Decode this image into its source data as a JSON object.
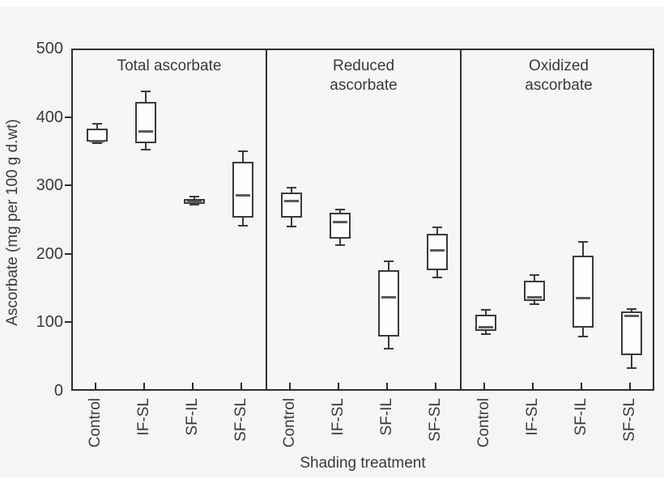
{
  "figure": {
    "background_color": "#f5f5f3",
    "frame_color": "#2e2e2e",
    "text_color": "#3a3a3a"
  },
  "chart_data": {
    "type": "boxplot",
    "xlabel": "Shading treatment",
    "ylabel": "Ascorbate (mg per 100 g d.wt)",
    "ylim": [
      0,
      500
    ],
    "yticks": [
      0,
      100,
      200,
      300,
      400,
      500
    ],
    "grid": false,
    "categories": [
      "Control",
      "IF-SL",
      "SF-IL",
      "SF-SL"
    ],
    "panels": [
      {
        "title": "Total ascorbate",
        "title_lines": [
          "Total ascorbate"
        ],
        "boxes": [
          {
            "category": "Control",
            "whisker_low": 364,
            "q1": 366,
            "median": 368,
            "q3": 385,
            "whisker_high": 392
          },
          {
            "category": "IF-SL",
            "whisker_low": 355,
            "q1": 364,
            "median": 382,
            "q3": 424,
            "whisker_high": 440
          },
          {
            "category": "SF-IL",
            "whisker_low": 274,
            "q1": 276,
            "median": 279,
            "q3": 283,
            "whisker_high": 286
          },
          {
            "category": "SF-SL",
            "whisker_low": 243,
            "q1": 255,
            "median": 288,
            "q3": 337,
            "whisker_high": 352
          }
        ]
      },
      {
        "title": "Reduced ascorbate",
        "title_lines": [
          "Reduced",
          "ascorbate"
        ],
        "boxes": [
          {
            "category": "Control",
            "whisker_low": 242,
            "q1": 255,
            "median": 280,
            "q3": 292,
            "whisker_high": 299
          },
          {
            "category": "IF-SL",
            "whisker_low": 215,
            "q1": 225,
            "median": 249,
            "q3": 262,
            "whisker_high": 267
          },
          {
            "category": "SF-IL",
            "whisker_low": 64,
            "q1": 82,
            "median": 139,
            "q3": 179,
            "whisker_high": 191
          },
          {
            "category": "SF-SL",
            "whisker_low": 168,
            "q1": 178,
            "median": 208,
            "q3": 232,
            "whisker_high": 241
          }
        ]
      },
      {
        "title": "Oxidized ascorbate",
        "title_lines": [
          "Oxidized",
          "ascorbate"
        ],
        "boxes": [
          {
            "category": "Control",
            "whisker_low": 85,
            "q1": 90,
            "median": 96,
            "q3": 113,
            "whisker_high": 120
          },
          {
            "category": "IF-SL",
            "whisker_low": 129,
            "q1": 133,
            "median": 139,
            "q3": 163,
            "whisker_high": 171
          },
          {
            "category": "SF-IL",
            "whisker_low": 81,
            "q1": 94,
            "median": 138,
            "q3": 200,
            "whisker_high": 220
          },
          {
            "category": "SF-SL",
            "whisker_low": 35,
            "q1": 54,
            "median": 112,
            "q3": 118,
            "whisker_high": 122
          }
        ]
      }
    ]
  }
}
